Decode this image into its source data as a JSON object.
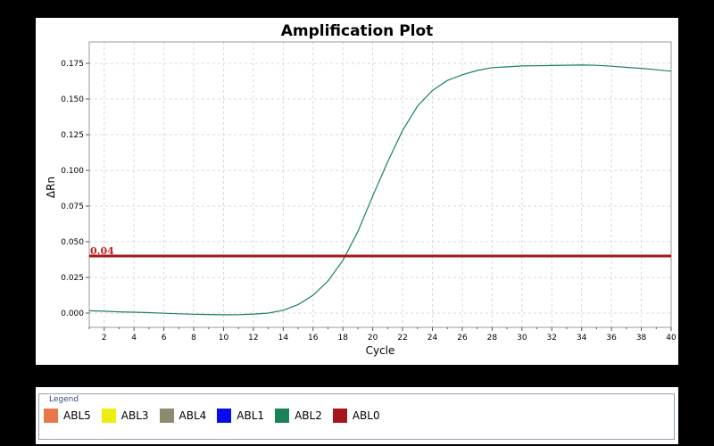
{
  "chart_data": {
    "type": "line",
    "title": "Amplification Plot",
    "xlabel": "Cycle",
    "ylabel": "ΔRn",
    "xlim": [
      1,
      40
    ],
    "ylim": [
      -0.01,
      0.19
    ],
    "x_ticks": [
      2,
      4,
      6,
      8,
      10,
      12,
      14,
      16,
      18,
      20,
      22,
      24,
      26,
      28,
      30,
      32,
      34,
      36,
      38,
      40
    ],
    "y_ticks": [
      "0.000",
      "0.025",
      "0.050",
      "0.075",
      "0.100",
      "0.125",
      "0.150",
      "0.175"
    ],
    "grid": true,
    "series": [
      {
        "name": "ABL2",
        "color": "#19825a",
        "x": [
          1,
          2,
          3,
          4,
          5,
          6,
          7,
          8,
          9,
          10,
          11,
          12,
          13,
          14,
          15,
          16,
          17,
          18,
          19,
          20,
          21,
          22,
          23,
          24,
          25,
          26,
          27,
          28,
          29,
          30,
          31,
          32,
          33,
          34,
          35,
          36,
          37,
          38,
          39,
          40
        ],
        "values": [
          0.0016,
          0.0013,
          0.0009,
          0.0006,
          0.0003,
          -0.0001,
          -0.0005,
          -0.0008,
          -0.001,
          -0.0012,
          -0.0011,
          -0.0007,
          0.0,
          0.002,
          0.006,
          0.0125,
          0.0225,
          0.037,
          0.057,
          0.082,
          0.106,
          0.128,
          0.145,
          0.156,
          0.163,
          0.167,
          0.17,
          0.172,
          0.1725,
          0.1732,
          0.1733,
          0.1735,
          0.1737,
          0.1738,
          0.1736,
          0.173,
          0.1722,
          0.1715,
          0.1705,
          0.1695
        ]
      }
    ],
    "threshold": {
      "value": 0.04,
      "label": "0.04",
      "color": "#a5161b"
    }
  },
  "legend": {
    "title": "Legend",
    "items": [
      {
        "label": "ABL5",
        "color": "#e8784a"
      },
      {
        "label": "ABL3",
        "color": "#eeee0e"
      },
      {
        "label": "ABL4",
        "color": "#8e8a72"
      },
      {
        "label": "ABL1",
        "color": "#0a0aee"
      },
      {
        "label": "ABL2",
        "color": "#19825a"
      },
      {
        "label": "ABL0",
        "color": "#a5161b"
      }
    ]
  }
}
